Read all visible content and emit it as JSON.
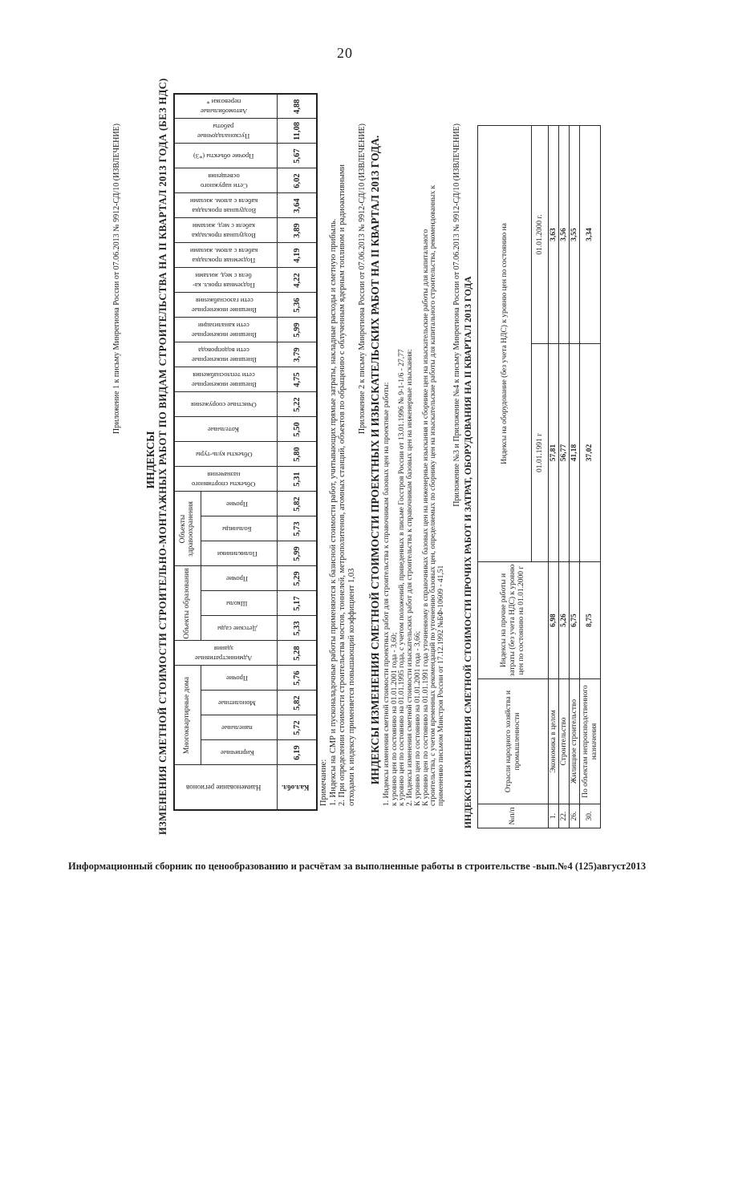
{
  "page": {
    "number": "20",
    "footer": "Информационный сборник по ценообразованию и расчётам за выполненные работы в строительстве  -вып.№4 (125)август2013"
  },
  "colors": {
    "text": "#1f1f1f",
    "table_border": "#2b2b2b"
  },
  "appendix1": {
    "note": "Приложение 1 к письму Минрегиона России от 07.06.2013 № 9912-СД/10 (ИЗВЛЕЧЕНИЕ)",
    "heading_line1": "ИНДЕКСЫ",
    "heading_line2": "ИЗМЕНЕНИЯ СМЕТНОЙ СТОИМОСТИ СТРОИТЕЛЬНО-МОНТАЖНЫХ РАБОТ ПО ВИДАМ СТРОИТЕЛЬСТВА НА II КВАРТАЛ 2013 ГОДА (БЕЗ НДС)",
    "table": {
      "region_header": "Наименование регионов",
      "region": "Кал.обл.",
      "columns": [
        {
          "group": "Многоквартирные дома",
          "lines": [
            "Кирпичные"
          ],
          "value": "6,19"
        },
        {
          "group": "Многоквартирные дома",
          "lines": [
            "панельные"
          ],
          "value": "5,72"
        },
        {
          "group": "Многоквартирные дома",
          "lines": [
            "Монолитные"
          ],
          "value": "5,82"
        },
        {
          "group": "Многоквартирные дома",
          "lines": [
            "Прочие"
          ],
          "value": "5,76"
        },
        {
          "group": null,
          "lines": [
            "Административные",
            "здания"
          ],
          "value": "5,28"
        },
        {
          "group": "Объекты образования",
          "lines": [
            "Детские сады"
          ],
          "value": "5,33"
        },
        {
          "group": "Объекты образования",
          "lines": [
            "Школы"
          ],
          "value": "5,17"
        },
        {
          "group": "Объекты образования",
          "lines": [
            "Прочие"
          ],
          "value": "5,29"
        },
        {
          "group": "Объекты здравоохранения",
          "lines": [
            "Поликлиники"
          ],
          "value": "5,99"
        },
        {
          "group": "Объекты здравоохранения",
          "lines": [
            "Больницы"
          ],
          "value": "5,73"
        },
        {
          "group": "Объекты здравоохранения",
          "lines": [
            "Прочие"
          ],
          "value": "5,82"
        },
        {
          "group": null,
          "lines": [
            "Объекты спортивного",
            "назначения"
          ],
          "value": "5,31"
        },
        {
          "group": null,
          "lines": [
            "Объекты куль-туры"
          ],
          "value": "5,80"
        },
        {
          "group": null,
          "lines": [
            "Котельные"
          ],
          "value": "5,50"
        },
        {
          "group": null,
          "lines": [
            "Очистные сооружения"
          ],
          "value": "5,22"
        },
        {
          "group": null,
          "lines": [
            "Внешние инженерные",
            "сети теплоснабжения"
          ],
          "value": "4,75"
        },
        {
          "group": null,
          "lines": [
            "Внешние инженерные",
            "сети водопровода"
          ],
          "value": "3,79"
        },
        {
          "group": null,
          "lines": [
            "Внешние инженерные",
            "сети канализации"
          ],
          "value": "5,99"
        },
        {
          "group": null,
          "lines": [
            "Внешние инженерные",
            "сети газоснабжения"
          ],
          "value": "5,36"
        },
        {
          "group": null,
          "lines": [
            "Подземная прокл. ка-",
            "беля с мед. жилами"
          ],
          "value": "4,22"
        },
        {
          "group": null,
          "lines": [
            "Подземная прокладка",
            "кабеля с алюм. жилами"
          ],
          "value": "4,19"
        },
        {
          "group": null,
          "lines": [
            "Воздушная прокладка",
            "кабеля с мед. жилами"
          ],
          "value": "3,89"
        },
        {
          "group": null,
          "lines": [
            "Воздушная прокладка",
            "кабеля с алюм. жилами"
          ],
          "value": "3,64"
        },
        {
          "group": null,
          "lines": [
            "Сети наружного",
            "освещения"
          ],
          "value": "6,02"
        },
        {
          "group": null,
          "lines": [
            "Прочие объекты (*3)"
          ],
          "value": "5,67"
        },
        {
          "group": null,
          "lines": [
            "Пусконаладочные",
            "работы"
          ],
          "value": "11,08"
        },
        {
          "group": null,
          "lines": [
            "Автомобильные",
            "перевозки *"
          ],
          "value": "4,88"
        }
      ]
    },
    "notes": [
      "Примечание:",
      "1. Индексы на СМР и пусконаладочные работы применяются к базисной стоимости работ, учитывающих прямые затраты, накладные расходы и сметную прибыль.",
      "2. При определении стоимости строительства мостов, тоннелей, метрополитенов, атомных станций, объектов по обращению с облученным ядерным топливом и радиоактивными",
      "отходами к индексу применяется повышающий коэффициент 1,03"
    ]
  },
  "appendix2": {
    "note": "Приложение 2 к письму Минрегиона России от 07.06.2013 № 9912-СД/10 (ИЗВЛЕЧЕНИЕ)",
    "heading": "ИНДЕКСЫ ИЗМЕНЕНИЯ СМЕТНОЙ СТОИМОСТИ ПРОЕКТНЫХ И ИЗЫСКАТЕЛЬСКИХ РАБОТ НА II КВАРТАЛ 2013 ГОДА.",
    "lines": [
      "1. Индексы изменения сметной стоимости проектных работ для строительства к справочникам базовых цен на проектные работы:",
      "к уровню цен по состоянию на 01.01.2001 года - 3,60;",
      "к уровню цен по состоянию на 01.01.1995 года, с учетом положений, приведенных в письме Госстроя России от 13.01.1996 № 9-1-1/6 - 27,77",
      "2. Индексы изменения сметной стоимости изыскательских работ для строительства к справочникам базовых цен на инженерные изыскания:",
      "К уровню цен по состоянию на 01.01.2001 года - 3,66;",
      "К уровню цен по состоянию на 01.01.1991 года уточненному в справочниках базовых цен на инженерные изыскания и сборнике цен на изыскательские работы для капитального",
      "строительства, с учетом временных рекомендаций по уточнению базовых цен, определяемых по сборнику цен на изыскательские работы для капитального строительства, рекомендованных к",
      "применению письмом Минстроя России от 17.12.1992 №БФ-10609 - 41,51"
    ]
  },
  "appendix34": {
    "note": "Приложение №3 и Приложение №4 к письму Минрегиона России от 07.06.2013 № 9912-СД/10 (ИЗВЛЕЧЕНИЕ)",
    "heading": "ИНДЕКСЫ ИЗМЕНЕНИЯ СМЕТНОЙ СТОИМОСТИ ПРОЧИХ РАБОТ И ЗАТРАТ, ОБОРУДОВАНИЯ НА II КВАРТАЛ 2013 ГОДА",
    "table": {
      "headers": {
        "num": "№п/п",
        "industry": "Отрасли народного хозяйства и промышленности",
        "other_works": "Индексы на прочие работы и затраты (без учета НДС) к уровню цен по состоянию на 01.01.2000 г",
        "equipment": "Индексы на оборудование (без учета НДС) к уровню цен по состоянию на",
        "equip_1991": "01.01.1991 г",
        "equip_2000": "01.01.2000 г."
      },
      "rows": [
        {
          "num": "1.",
          "industry": "Экономика в целом",
          "other_works": "6,98",
          "equip_1991": "57,81",
          "equip_2000": "3,63"
        },
        {
          "num": "22.",
          "industry": "Строительство",
          "other_works": "5,26",
          "equip_1991": "56,77",
          "equip_2000": "3,56"
        },
        {
          "num": "26.",
          "industry": "Жилищное строительство",
          "other_works": "6,75",
          "equip_1991": "41,18",
          "equip_2000": "3,55"
        },
        {
          "num": "30.",
          "industry": "По объектам непроизводственного назначения",
          "other_works": "8,75",
          "equip_1991": "37,02",
          "equip_2000": "3,34"
        }
      ]
    }
  }
}
